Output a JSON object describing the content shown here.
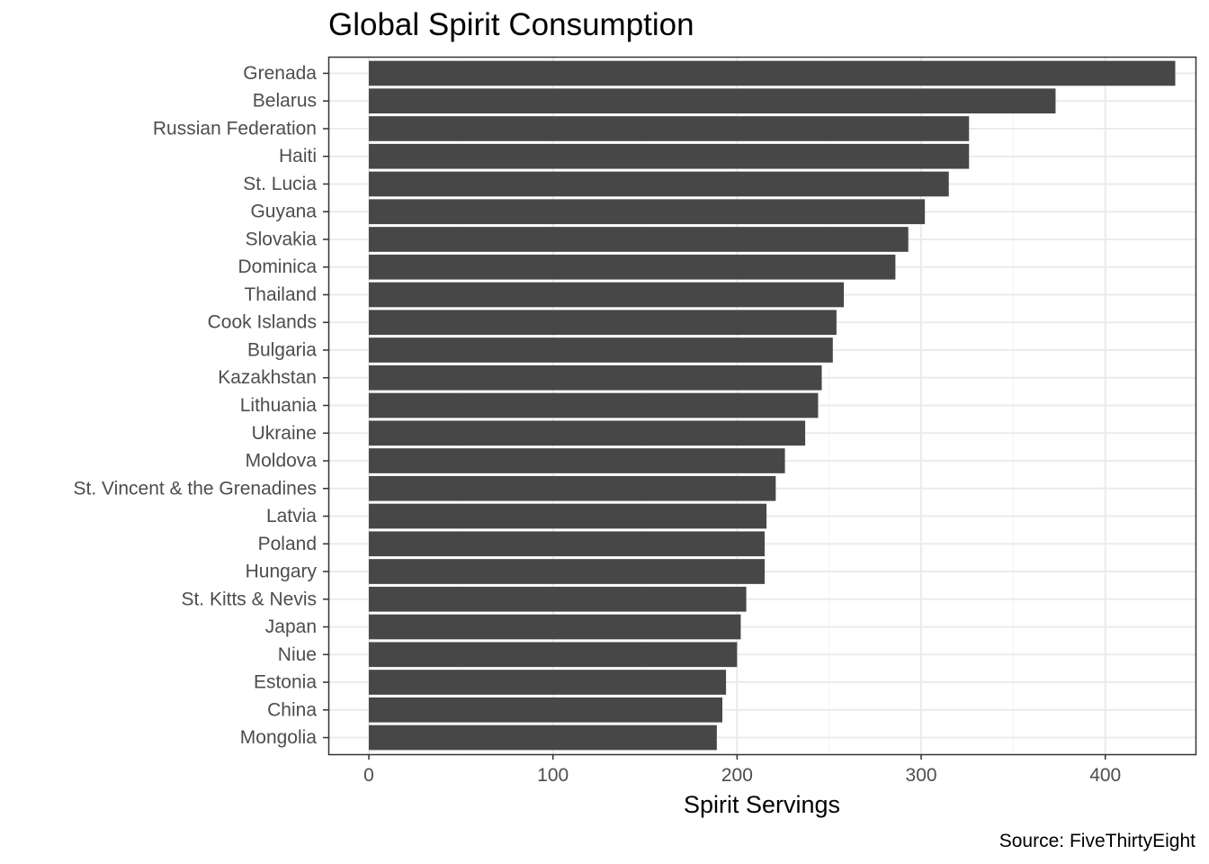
{
  "chart_data": {
    "type": "bar",
    "orientation": "horizontal",
    "title": "Global Spirit Consumption",
    "xlabel": "Spirit Servings",
    "ylabel": "",
    "caption": "Source: FiveThirtyEight",
    "xlim": [
      -22,
      449
    ],
    "x_ticks": [
      0,
      100,
      200,
      300,
      400
    ],
    "x_tick_labels": [
      "0",
      "100",
      "200",
      "300",
      "400"
    ],
    "grid": true,
    "legend": "none",
    "categories": [
      "Grenada",
      "Belarus",
      "Russian Federation",
      "Haiti",
      "St. Lucia",
      "Guyana",
      "Slovakia",
      "Dominica",
      "Thailand",
      "Cook Islands",
      "Bulgaria",
      "Kazakhstan",
      "Lithuania",
      "Ukraine",
      "Moldova",
      "St. Vincent & the Grenadines",
      "Latvia",
      "Poland",
      "Hungary",
      "St. Kitts & Nevis",
      "Japan",
      "Niue",
      "Estonia",
      "China",
      "Mongolia"
    ],
    "values": [
      438,
      373,
      326,
      326,
      315,
      302,
      293,
      286,
      258,
      254,
      252,
      246,
      244,
      237,
      226,
      221,
      216,
      215,
      215,
      205,
      202,
      200,
      194,
      192,
      189
    ],
    "colors": {
      "bar": "#474747",
      "panel_border": "#333333",
      "grid_major": "#ebebeb",
      "grid_minor": "#f5f5f5",
      "tick_mark": "#333333"
    }
  }
}
